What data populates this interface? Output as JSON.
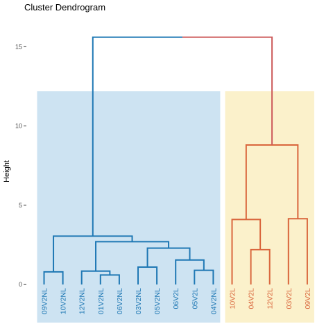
{
  "chart_data": {
    "type": "dendrogram",
    "title": "Cluster Dendrogram",
    "xlabel": "",
    "ylabel": "Height",
    "ylim": [
      -2.4,
      16.5
    ],
    "yticks": [
      0,
      5,
      10,
      15
    ],
    "grid": false,
    "leaves": [
      "09V2NL",
      "10V2NL",
      "12V2NL",
      "01V2NL",
      "06V2NL",
      "03V2NL",
      "05V2NL",
      "06V2L",
      "05V2L",
      "04V2NL",
      "10V2L",
      "04V2L",
      "12V2L",
      "03V2L",
      "09V2L"
    ],
    "merges": [
      {
        "left": "L0",
        "right": "L1",
        "height": 0.8,
        "cluster": 1
      },
      {
        "left": "L3",
        "right": "L4",
        "height": 0.6,
        "cluster": 1
      },
      {
        "left": "L2",
        "right": "M1",
        "height": 0.85,
        "cluster": 1
      },
      {
        "left": "L5",
        "right": "L6",
        "height": 1.1,
        "cluster": 1
      },
      {
        "left": "L8",
        "right": "L9",
        "height": 0.9,
        "cluster": 1
      },
      {
        "left": "L7",
        "right": "M4",
        "height": 1.55,
        "cluster": 1
      },
      {
        "left": "M3",
        "right": "M5",
        "height": 2.3,
        "cluster": 1
      },
      {
        "left": "M2",
        "right": "M6",
        "height": 2.7,
        "cluster": 1
      },
      {
        "left": "M0",
        "right": "M7",
        "height": 3.05,
        "cluster": 1
      },
      {
        "left": "L11",
        "right": "L12",
        "height": 2.2,
        "cluster": 2
      },
      {
        "left": "L10",
        "right": "M9",
        "height": 4.1,
        "cluster": 2
      },
      {
        "left": "L13",
        "right": "L14",
        "height": 4.15,
        "cluster": 2
      },
      {
        "left": "M10",
        "right": "M11",
        "height": 8.8,
        "cluster": 2
      },
      {
        "left": "M8",
        "right": "M12",
        "height": 15.6,
        "cluster": 0
      }
    ],
    "clusters": [
      {
        "name": "cluster-1",
        "leaf_range": [
          0,
          9
        ],
        "line_color": "#1f78b4",
        "label_color": "#1f78b4",
        "fill_color": "#cde3f2"
      },
      {
        "name": "cluster-2",
        "leaf_range": [
          10,
          14
        ],
        "line_color": "#d9663c",
        "label_color": "#d9663c",
        "fill_color": "#fbf1cb"
      }
    ],
    "root_split_colors": [
      "#1f78b4",
      "#cd5c5c"
    ],
    "rect_top": 12.2
  }
}
